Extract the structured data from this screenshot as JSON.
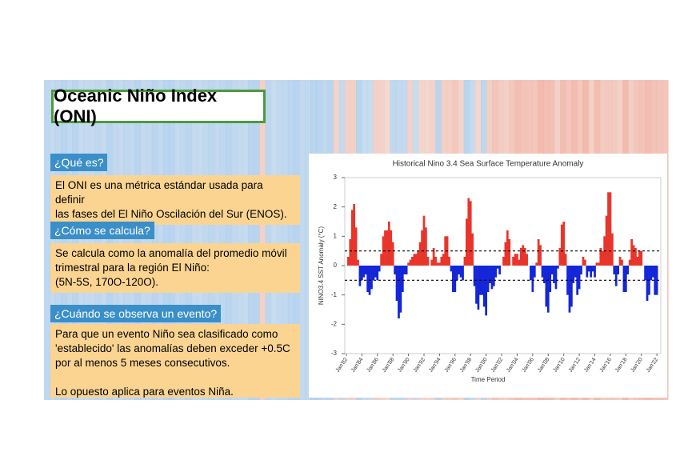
{
  "slide": {
    "title": "Oceanic Niño Index (ONI)",
    "sections": [
      {
        "label": "¿Qué es?",
        "lines": [
          "El ONI es una métrica estándar usada para definir",
          "las fases del El Niño Oscilación del Sur (ENOS)."
        ]
      },
      {
        "label": "¿Cómo se calcula?",
        "lines": [
          "Se calcula como la anomalía del promedio móvil",
          "trimestral para la región El Niño:",
          "(5N-5S, 170O-120O)."
        ]
      },
      {
        "label": "¿Cuándo se observa un evento?",
        "lines": [
          "Para que un evento Niño sea clasificado como",
          "'establecido' las anomalías deben exceder +0.5C",
          "por al menos 5 meses consecutivos.",
          "",
          "Lo opuesto aplica para eventos Niña."
        ]
      }
    ]
  },
  "chart_data": {
    "type": "bar",
    "title": "Historical Nino 3.4 Sea Surface Temperature Anomaly",
    "xlabel": "Time Period",
    "ylabel": "NINO3.4 SST Anomaly (°C)",
    "pos_color": "#e8352b",
    "neg_color": "#1426d8",
    "thresholds": [
      0.5,
      -0.5
    ],
    "ylim": [
      -3,
      3
    ],
    "yticks": [
      -3,
      -2,
      -1,
      0,
      1,
      2,
      3
    ],
    "xlim": [
      1981.8,
      2022.5
    ],
    "xticks": [
      {
        "value": 1982,
        "label": "Jan'82"
      },
      {
        "value": 1984,
        "label": "Jan'84"
      },
      {
        "value": 1986,
        "label": "Jan'86"
      },
      {
        "value": 1988,
        "label": "Jan'88"
      },
      {
        "value": 1990,
        "label": "Jan'90"
      },
      {
        "value": 1992,
        "label": "Jan'92"
      },
      {
        "value": 1994,
        "label": "Jan'94"
      },
      {
        "value": 1996,
        "label": "Jan'96"
      },
      {
        "value": 1998,
        "label": "Jan'98"
      },
      {
        "value": 2000,
        "label": "Jan'00"
      },
      {
        "value": 2002,
        "label": "Jan'02"
      },
      {
        "value": 2004,
        "label": "Jan'04"
      },
      {
        "value": 2006,
        "label": "Jan'06"
      },
      {
        "value": 2008,
        "label": "Jan'08"
      },
      {
        "value": 2010,
        "label": "Jan'10"
      },
      {
        "value": 2012,
        "label": "Jan'12"
      },
      {
        "value": 2014,
        "label": "Jan'14"
      },
      {
        "value": 2016,
        "label": "Jan'16"
      },
      {
        "value": 2018,
        "label": "Jan'18"
      },
      {
        "value": 2020,
        "label": "Jan'20"
      },
      {
        "value": 2022,
        "label": "Jan'22"
      }
    ],
    "x": [
      1982,
      1982.25,
      1982.5,
      1982.75,
      1983,
      1983.25,
      1983.5,
      1983.75,
      1984,
      1984.25,
      1984.5,
      1984.75,
      1985,
      1985.25,
      1985.5,
      1985.75,
      1986,
      1986.25,
      1986.5,
      1986.75,
      1987,
      1987.25,
      1987.5,
      1987.75,
      1988,
      1988.25,
      1988.5,
      1988.75,
      1989,
      1989.25,
      1989.5,
      1989.75,
      1990,
      1990.25,
      1990.5,
      1990.75,
      1991,
      1991.25,
      1991.5,
      1991.75,
      1992,
      1992.25,
      1992.5,
      1992.75,
      1993,
      1993.25,
      1993.5,
      1993.75,
      1994,
      1994.25,
      1994.5,
      1994.75,
      1995,
      1995.25,
      1995.5,
      1995.75,
      1996,
      1996.25,
      1996.5,
      1996.75,
      1997,
      1997.25,
      1997.5,
      1997.75,
      1998,
      1998.25,
      1998.5,
      1998.75,
      1999,
      1999.25,
      1999.5,
      1999.75,
      2000,
      2000.25,
      2000.5,
      2000.75,
      2001,
      2001.25,
      2001.5,
      2001.75,
      2002,
      2002.25,
      2002.5,
      2002.75,
      2003,
      2003.25,
      2003.5,
      2003.75,
      2004,
      2004.25,
      2004.5,
      2004.75,
      2005,
      2005.25,
      2005.5,
      2005.75,
      2006,
      2006.25,
      2006.5,
      2006.75,
      2007,
      2007.25,
      2007.5,
      2007.75,
      2008,
      2008.25,
      2008.5,
      2008.75,
      2009,
      2009.25,
      2009.5,
      2009.75,
      2010,
      2010.25,
      2010.5,
      2010.75,
      2011,
      2011.25,
      2011.5,
      2011.75,
      2012,
      2012.25,
      2012.5,
      2012.75,
      2013,
      2013.25,
      2013.5,
      2013.75,
      2014,
      2014.25,
      2014.5,
      2014.75,
      2015,
      2015.25,
      2015.5,
      2015.75,
      2016,
      2016.25,
      2016.5,
      2016.75,
      2017,
      2017.25,
      2017.5,
      2017.75,
      2018,
      2018.25,
      2018.5,
      2018.75,
      2019,
      2019.25,
      2019.5,
      2019.75,
      2020,
      2020.25,
      2020.5,
      2020.75,
      2021,
      2021.25,
      2021.5,
      2021.75,
      2022
    ],
    "values": [
      0.0,
      0.3,
      0.9,
      1.9,
      2.1,
      1.3,
      0.2,
      -0.7,
      -0.5,
      -0.4,
      -0.3,
      -0.9,
      -1.0,
      -0.8,
      -0.5,
      -0.4,
      -0.5,
      -0.2,
      0.4,
      1.0,
      1.2,
      1.2,
      1.5,
      1.2,
      0.8,
      -0.3,
      -1.2,
      -1.8,
      -1.6,
      -0.9,
      -0.3,
      -0.3,
      0.1,
      0.2,
      0.3,
      0.4,
      0.4,
      0.5,
      0.8,
      1.2,
      1.7,
      1.3,
      0.3,
      0.0,
      0.2,
      0.6,
      0.3,
      0.1,
      0.1,
      0.3,
      0.4,
      1.0,
      1.0,
      0.3,
      -0.2,
      -0.9,
      -0.9,
      -0.5,
      -0.3,
      -0.4,
      -0.5,
      0.3,
      1.6,
      2.3,
      2.2,
      1.1,
      -0.7,
      -1.3,
      -1.5,
      -1.0,
      -1.0,
      -1.4,
      -1.7,
      -0.9,
      -0.6,
      -0.8,
      -0.7,
      -0.4,
      -0.1,
      -0.3,
      0.0,
      0.3,
      0.8,
      1.2,
      0.9,
      0.0,
      0.3,
      0.4,
      0.4,
      0.2,
      0.6,
      0.7,
      0.6,
      0.4,
      0.0,
      -0.5,
      -0.9,
      -0.4,
      0.1,
      0.9,
      0.7,
      -0.4,
      -0.6,
      -1.4,
      -1.6,
      -0.9,
      -0.3,
      -0.6,
      -0.8,
      -0.1,
      0.6,
      1.4,
      1.5,
      0.4,
      -1.0,
      -1.6,
      -1.4,
      -0.6,
      -0.4,
      -1.0,
      -0.8,
      -0.3,
      0.3,
      0.2,
      -0.4,
      -0.2,
      -0.4,
      -0.2,
      -0.4,
      0.1,
      0.1,
      0.6,
      0.5,
      1.0,
      1.7,
      2.5,
      2.5,
      1.1,
      -0.3,
      -0.7,
      -0.3,
      0.3,
      0.2,
      -0.9,
      -0.9,
      -0.3,
      0.2,
      0.9,
      0.7,
      0.6,
      0.3,
      0.5,
      0.5,
      0.0,
      -0.5,
      -1.2,
      -1.0,
      -0.5,
      -0.4,
      -1.0,
      -1.0
    ]
  }
}
